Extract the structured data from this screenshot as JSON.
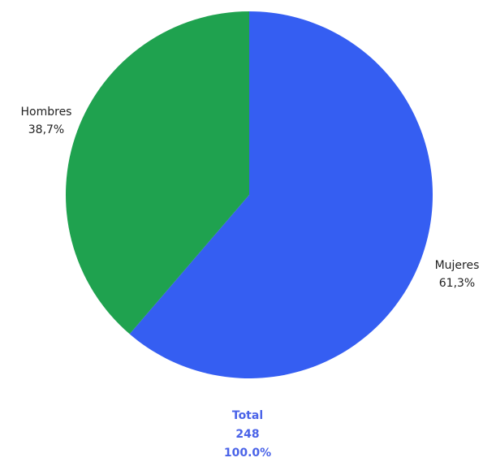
{
  "chart_data": {
    "type": "pie",
    "slices": [
      {
        "label": "Mujeres",
        "percent_label": "61,3%",
        "value": 61.3,
        "color": "#355EF2"
      },
      {
        "label": "Hombres",
        "percent_label": "38,7%",
        "value": 38.7,
        "color": "#1FA24F"
      }
    ],
    "total": {
      "label": "Total",
      "count": "248",
      "percent": "100.0%",
      "color": "#4A63E8"
    }
  }
}
